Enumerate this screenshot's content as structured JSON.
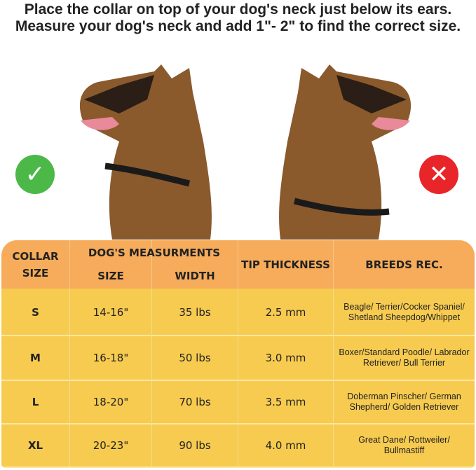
{
  "title": "Place the collar on top of your dog's neck just below its ears. Measure your dog's neck and add 1\"- 2\" to find the correct size.",
  "correct_icon": "check-circle-icon",
  "incorrect_icon": "x-circle-icon",
  "colors": {
    "header": "#f6ac5a",
    "row": "#f7cb50",
    "correct": "#4cb848",
    "incorrect": "#e8262a"
  },
  "table": {
    "headers": {
      "collar_size": "COLLAR SIZE",
      "measurements": "DOG'S MEASURMENTS",
      "size": "SIZE",
      "width": "WIDTH",
      "tip": "TIP THICKNESS",
      "breeds": "BREEDS REC."
    },
    "rows": [
      {
        "collar": "S",
        "size": "14-16\"",
        "width": "35 lbs",
        "tip": "2.5 mm",
        "breeds": "Beagle/ Terrier/Cocker Spaniel/ Shetland Sheepdog/Whippet"
      },
      {
        "collar": "M",
        "size": "16-18\"",
        "width": "50 lbs",
        "tip": "3.0 mm",
        "breeds": "Boxer/Standard Poodle/ Labrador Retriever/ Bull Terrier"
      },
      {
        "collar": "L",
        "size": "18-20\"",
        "width": "70 lbs",
        "tip": "3.5 mm",
        "breeds": "Doberman Pinscher/ German Shepherd/ Golden Retriever"
      },
      {
        "collar": "XL",
        "size": "20-23\"",
        "width": "90 lbs",
        "tip": "4.0 mm",
        "breeds": "Great Dane/ Rottweiler/ Bullmastiff"
      }
    ]
  }
}
